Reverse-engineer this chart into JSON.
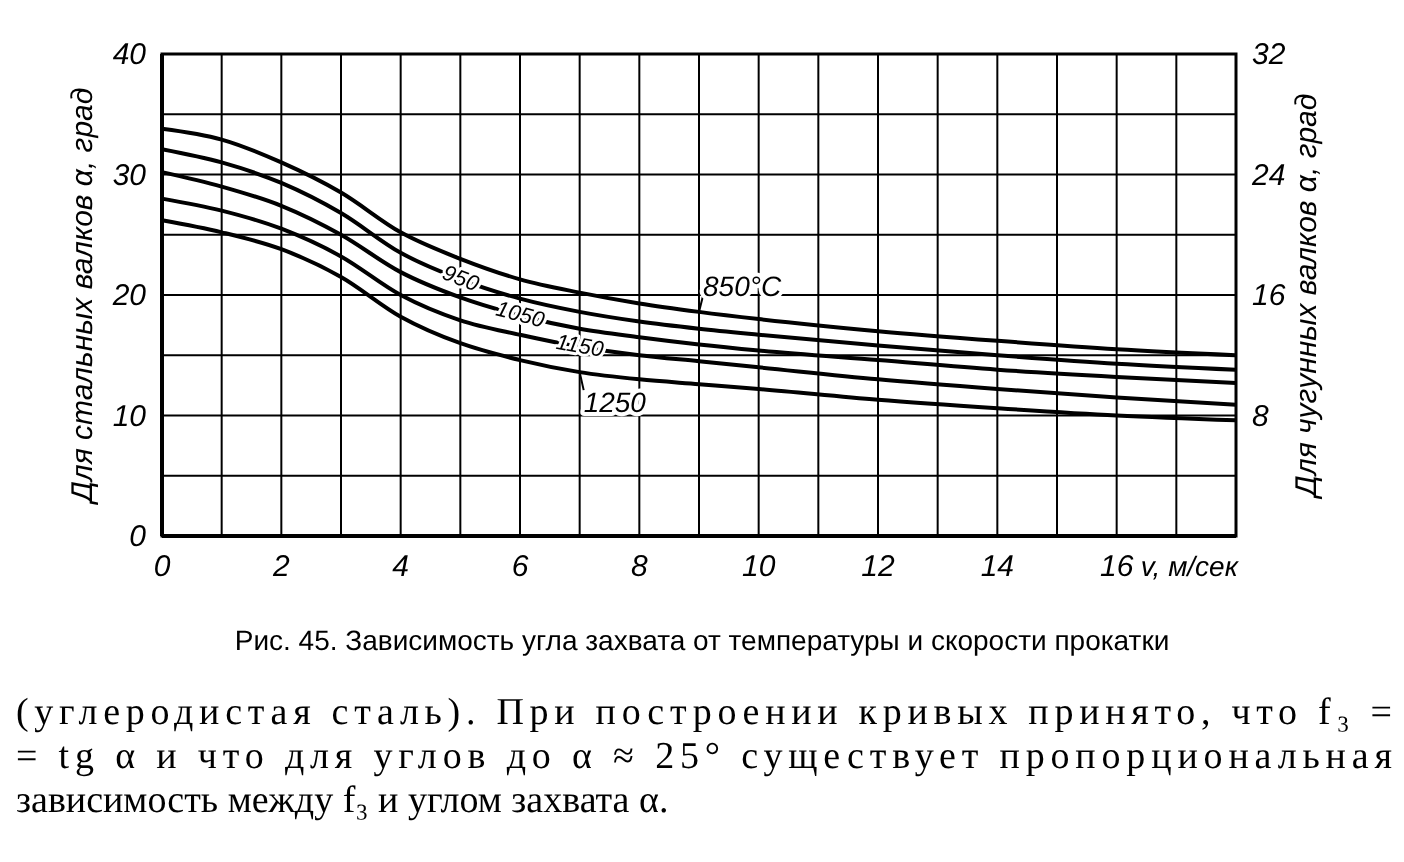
{
  "chart_data": {
    "type": "line",
    "xlabel": "v, м/сек",
    "ylabel": "Для стальных валков α, град",
    "y2label": "Для чугунных валков α, град",
    "x": [
      0,
      1,
      2,
      3,
      4,
      5,
      6,
      7,
      8,
      9,
      10,
      12,
      14,
      16,
      18
    ],
    "series": [
      {
        "name": "850°C",
        "color": "#000000",
        "values": [
          33.8,
          32.9,
          31.0,
          28.5,
          25.2,
          23.0,
          21.3,
          20.2,
          19.3,
          18.6,
          18.0,
          17.0,
          16.2,
          15.5,
          15.0
        ]
      },
      {
        "name": "950",
        "color": "#000000",
        "values": [
          32.1,
          31.0,
          29.3,
          26.8,
          23.5,
          21.3,
          19.7,
          18.6,
          17.8,
          17.2,
          16.7,
          15.8,
          15.0,
          14.3,
          13.8
        ]
      },
      {
        "name": "1050",
        "color": "#000000",
        "values": [
          30.2,
          29.0,
          27.4,
          25.0,
          21.9,
          19.8,
          18.3,
          17.2,
          16.5,
          15.9,
          15.4,
          14.6,
          13.8,
          13.2,
          12.7
        ]
      },
      {
        "name": "1150",
        "color": "#000000",
        "values": [
          28.0,
          27.0,
          25.5,
          23.2,
          20.0,
          17.9,
          16.7,
          15.7,
          15.0,
          14.5,
          14.0,
          13.0,
          12.2,
          11.5,
          10.9
        ]
      },
      {
        "name": "1250",
        "color": "#000000",
        "values": [
          26.2,
          25.2,
          23.8,
          21.5,
          18.2,
          16.0,
          14.6,
          13.6,
          13.0,
          12.6,
          12.2,
          11.3,
          10.6,
          10.0,
          9.6
        ]
      }
    ],
    "xlim": [
      0,
      18
    ],
    "xticks": [
      0,
      {
        "value": 1,
        "label": null
      },
      2,
      {
        "value": 3,
        "label": null
      },
      4,
      {
        "value": 5,
        "label": null
      },
      6,
      {
        "value": 7,
        "label": null
      },
      8,
      {
        "value": 9,
        "label": null
      },
      10,
      {
        "value": 11,
        "label": null
      },
      12,
      {
        "value": 13,
        "label": null
      },
      14,
      {
        "value": 15,
        "label": null
      },
      16,
      {
        "value": 17,
        "label": null
      }
    ],
    "ylim": [
      0,
      40
    ],
    "yticks": [
      0,
      {
        "value": 5,
        "label": null
      },
      10,
      {
        "value": 15,
        "label": null
      },
      20,
      {
        "value": 25,
        "label": null
      },
      30,
      {
        "value": 35,
        "label": null
      },
      40
    ],
    "y2lim": [
      0,
      32
    ],
    "y2ticks": [
      8,
      16,
      24,
      32
    ],
    "grid": true,
    "annotations": [
      "Рис. 45. Зависимость угла захвата от температуры и скорости прокатки",
      "(углеродистая сталь). При построении кривых принято, что f₃ =",
      "= tg α и что для углов до α ≈ 25° существует пропорциональная",
      "зависимость между f₃ и углом захвата α."
    ]
  }
}
